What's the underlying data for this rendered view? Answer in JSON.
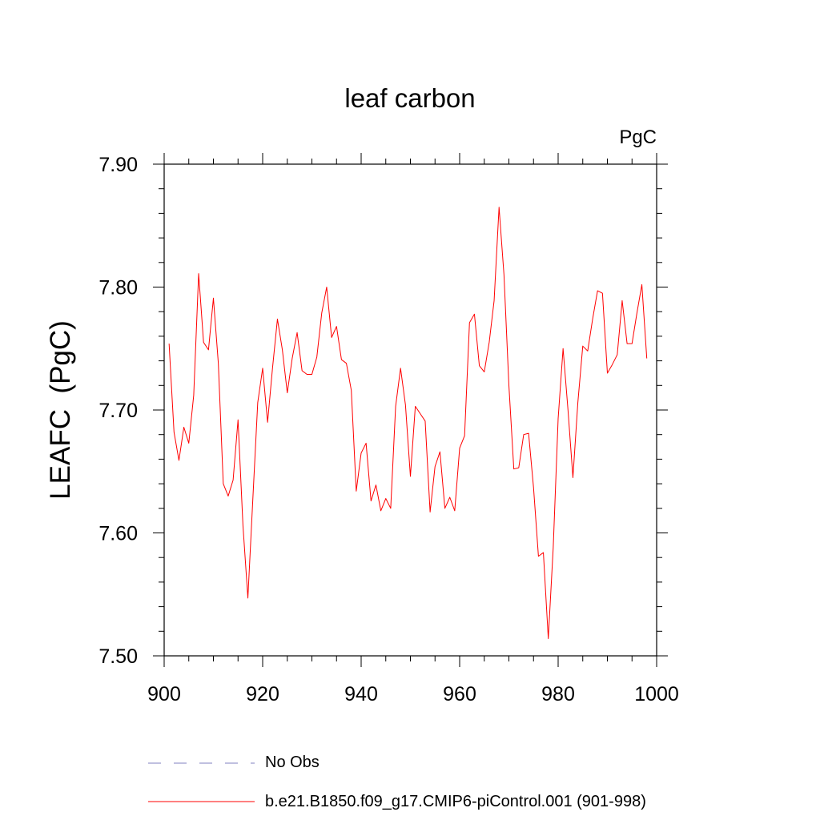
{
  "chart_data": {
    "type": "line",
    "title": "leaf carbon",
    "units_label": "PgC",
    "ylabel": "LEAFC  (PgC)",
    "xlabel": "",
    "xlim": [
      900,
      1000
    ],
    "ylim": [
      7.5,
      7.9
    ],
    "xticks": [
      900,
      920,
      940,
      960,
      980,
      1000
    ],
    "xtick_labels": [
      "900",
      "920",
      "940",
      "960",
      "980",
      "1000"
    ],
    "yticks": [
      7.5,
      7.6,
      7.7,
      7.8,
      7.9
    ],
    "ytick_labels": [
      "7.50",
      "7.60",
      "7.70",
      "7.80",
      "7.90"
    ],
    "grid": false,
    "legend_position": "bottom",
    "series": [
      {
        "name": "No Obs",
        "color": "#8080c0",
        "style": "dashed",
        "x": [],
        "values": []
      },
      {
        "name": "b.e21.B1850.f09_g17.CMIP6-piControl.001 (901-998)",
        "color": "#ff0000",
        "style": "solid",
        "x": [
          901,
          902,
          903,
          904,
          905,
          906,
          907,
          908,
          909,
          910,
          911,
          912,
          913,
          914,
          915,
          916,
          917,
          918,
          919,
          920,
          921,
          922,
          923,
          924,
          925,
          926,
          927,
          928,
          929,
          930,
          931,
          932,
          933,
          934,
          935,
          936,
          937,
          938,
          939,
          940,
          941,
          942,
          943,
          944,
          945,
          946,
          947,
          948,
          949,
          950,
          951,
          952,
          953,
          954,
          955,
          956,
          957,
          958,
          959,
          960,
          961,
          962,
          963,
          964,
          965,
          966,
          967,
          968,
          969,
          970,
          971,
          972,
          973,
          974,
          975,
          976,
          977,
          978,
          979,
          980,
          981,
          982,
          983,
          984,
          985,
          986,
          987,
          988,
          989,
          990,
          991,
          992,
          993,
          994,
          995,
          996,
          997,
          998
        ],
        "values": [
          7.754,
          7.682,
          7.659,
          7.686,
          7.673,
          7.712,
          7.811,
          7.755,
          7.749,
          7.791,
          7.738,
          7.64,
          7.63,
          7.643,
          7.692,
          7.606,
          7.547,
          7.627,
          7.706,
          7.734,
          7.69,
          7.734,
          7.774,
          7.749,
          7.714,
          7.742,
          7.763,
          7.732,
          7.729,
          7.729,
          7.743,
          7.779,
          7.8,
          7.759,
          7.768,
          7.741,
          7.738,
          7.716,
          7.634,
          7.665,
          7.673,
          7.626,
          7.639,
          7.618,
          7.628,
          7.62,
          7.703,
          7.734,
          7.704,
          7.646,
          7.703,
          7.697,
          7.691,
          7.617,
          7.654,
          7.666,
          7.62,
          7.629,
          7.618,
          7.669,
          7.679,
          7.771,
          7.778,
          7.736,
          7.731,
          7.755,
          7.789,
          7.865,
          7.81,
          7.72,
          7.652,
          7.653,
          7.68,
          7.681,
          7.637,
          7.581,
          7.584,
          7.514,
          7.588,
          7.693,
          7.75,
          7.7,
          7.645,
          7.706,
          7.752,
          7.748,
          7.774,
          7.797,
          7.795,
          7.73,
          7.737,
          7.745,
          7.789,
          7.754,
          7.754,
          7.779,
          7.802,
          7.742
        ]
      }
    ]
  }
}
